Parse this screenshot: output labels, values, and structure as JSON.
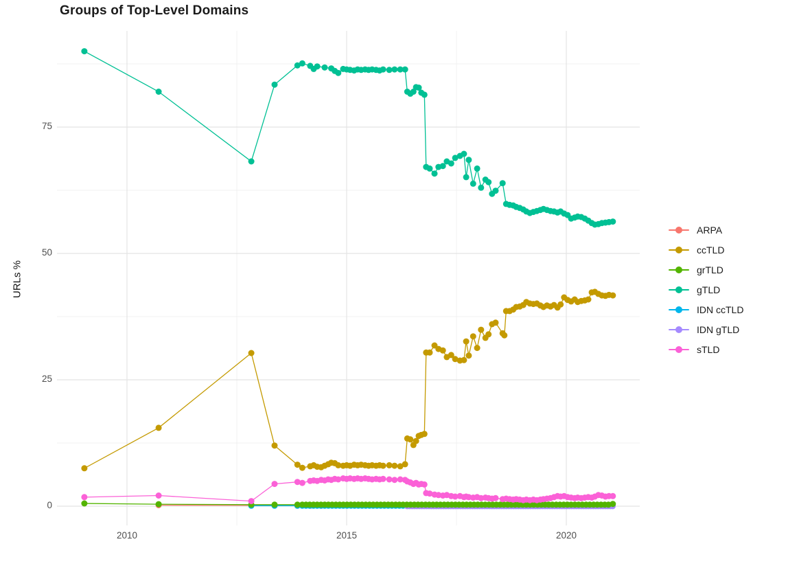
{
  "page": {
    "title": "Groups of Top-Level Domains",
    "y_axis_label": "URLs %"
  },
  "colors": {
    "background": "#FFFFFF",
    "grid_major": "#E4E4E4",
    "grid_minor": "#F1F1F1",
    "tick_label": "#4D4D4D",
    "text": "#1A1A1A"
  },
  "chart_data": {
    "type": "line",
    "title": "Groups of Top-Level Domains",
    "xlabel": "",
    "ylabel": "URLs %",
    "x_ticks": [
      2010,
      2015,
      2020
    ],
    "x_minor_gridlines": [
      2012.5,
      2017.5
    ],
    "y_ticks": [
      0,
      25,
      50,
      75
    ],
    "y_minor_gridlines": [
      12.5,
      37.5,
      62.5,
      87.5
    ],
    "xlim": [
      2008.45,
      2021.65
    ],
    "ylim": [
      -3.8,
      94
    ],
    "grid": true,
    "legend_position": "right",
    "marker_radius": 4.5,
    "line_width": 1.3,
    "draw_order": [
      "ARPA",
      "IDN ccTLD",
      "IDN gTLD",
      "grTLD",
      "sTLD",
      "ccTLD",
      "gTLD"
    ],
    "series": [
      {
        "name": "ARPA",
        "color": "#F8766D",
        "points": [
          [
            2010.72,
            0.2
          ],
          [
            2012.83,
            0.15
          ],
          [
            2013.36,
            0.12
          ],
          [
            2013.88,
            0.1
          ],
          [
            2014.17,
            0.1
          ],
          [
            2014.42,
            0.1
          ]
        ]
      },
      {
        "name": "ccTLD",
        "color": "#C49A00",
        "points": [
          [
            2009.03,
            7.5
          ],
          [
            2010.72,
            15.5
          ],
          [
            2012.83,
            30.3
          ],
          [
            2013.36,
            12
          ],
          [
            2013.88,
            8.2
          ],
          [
            2013.99,
            7.6
          ],
          [
            2014.17,
            7.9
          ],
          [
            2014.25,
            8.1
          ],
          [
            2014.33,
            7.8
          ],
          [
            2014.42,
            7.7
          ],
          [
            2014.5,
            8
          ],
          [
            2014.58,
            8.3
          ],
          [
            2014.65,
            8.6
          ],
          [
            2014.73,
            8.5
          ],
          [
            2014.81,
            8.1
          ],
          [
            2014.92,
            8
          ],
          [
            2015,
            8.1
          ],
          [
            2015.08,
            8
          ],
          [
            2015.17,
            8.2
          ],
          [
            2015.25,
            8.1
          ],
          [
            2015.33,
            8.2
          ],
          [
            2015.42,
            8.1
          ],
          [
            2015.5,
            8
          ],
          [
            2015.58,
            8.1
          ],
          [
            2015.67,
            8
          ],
          [
            2015.75,
            8.1
          ],
          [
            2015.83,
            8
          ],
          [
            2015.97,
            8.1
          ],
          [
            2016.09,
            8
          ],
          [
            2016.22,
            7.9
          ],
          [
            2016.33,
            8.3
          ],
          [
            2016.38,
            13.4
          ],
          [
            2016.45,
            13.2
          ],
          [
            2016.52,
            12.1
          ],
          [
            2016.58,
            12.9
          ],
          [
            2016.64,
            13.9
          ],
          [
            2016.7,
            14.1
          ],
          [
            2016.77,
            14.3
          ],
          [
            2016.81,
            30.4
          ],
          [
            2016.89,
            30.4
          ],
          [
            2017,
            31.8
          ],
          [
            2017.09,
            31.1
          ],
          [
            2017.19,
            30.8
          ],
          [
            2017.28,
            29.5
          ],
          [
            2017.38,
            29.9
          ],
          [
            2017.47,
            29.1
          ],
          [
            2017.58,
            28.8
          ],
          [
            2017.67,
            28.9
          ],
          [
            2017.72,
            32.6
          ],
          [
            2017.78,
            29.8
          ],
          [
            2017.88,
            33.6
          ],
          [
            2017.97,
            31.3
          ],
          [
            2018.06,
            34.9
          ],
          [
            2018.16,
            33.3
          ],
          [
            2018.23,
            34
          ],
          [
            2018.31,
            36
          ],
          [
            2018.39,
            36.3
          ],
          [
            2018.55,
            34.2
          ],
          [
            2018.59,
            33.8
          ],
          [
            2018.63,
            38.6
          ],
          [
            2018.71,
            38.6
          ],
          [
            2018.79,
            38.9
          ],
          [
            2018.86,
            39.4
          ],
          [
            2018.94,
            39.5
          ],
          [
            2019.02,
            39.8
          ],
          [
            2019.09,
            40.4
          ],
          [
            2019.17,
            40.1
          ],
          [
            2019.25,
            40
          ],
          [
            2019.33,
            40.1
          ],
          [
            2019.41,
            39.7
          ],
          [
            2019.48,
            39.4
          ],
          [
            2019.56,
            39.7
          ],
          [
            2019.64,
            39.5
          ],
          [
            2019.72,
            39.8
          ],
          [
            2019.8,
            39.3
          ],
          [
            2019.87,
            39.9
          ],
          [
            2019.95,
            41.3
          ],
          [
            2020.03,
            40.8
          ],
          [
            2020.11,
            40.5
          ],
          [
            2020.19,
            40.9
          ],
          [
            2020.26,
            40.4
          ],
          [
            2020.34,
            40.6
          ],
          [
            2020.42,
            40.7
          ],
          [
            2020.5,
            40.9
          ],
          [
            2020.58,
            42.3
          ],
          [
            2020.65,
            42.4
          ],
          [
            2020.73,
            42
          ],
          [
            2020.81,
            41.7
          ],
          [
            2020.89,
            41.6
          ],
          [
            2020.97,
            41.8
          ],
          [
            2021.06,
            41.7
          ]
        ]
      },
      {
        "name": "grTLD",
        "color": "#53B400",
        "points": [
          [
            2009.03,
            0.55
          ],
          [
            2010.72,
            0.4
          ],
          [
            2012.83,
            0.3
          ],
          [
            2013.36,
            0.3
          ],
          [
            2013.88,
            0.3
          ],
          [
            2021.06,
            0.45
          ]
        ],
        "flat": {
          "from": 2013.99,
          "to": 2021.0,
          "step": 0.085,
          "value": 0.3
        }
      },
      {
        "name": "gTLD",
        "color": "#00C094",
        "points": [
          [
            2009.03,
            90
          ],
          [
            2010.72,
            82
          ],
          [
            2012.83,
            68.2
          ],
          [
            2013.36,
            83.4
          ],
          [
            2013.88,
            87.2
          ],
          [
            2013.99,
            87.6
          ],
          [
            2014.17,
            87.1
          ],
          [
            2014.25,
            86.5
          ],
          [
            2014.33,
            87
          ],
          [
            2014.5,
            86.8
          ],
          [
            2014.65,
            86.6
          ],
          [
            2014.73,
            86.1
          ],
          [
            2014.81,
            85.7
          ],
          [
            2014.92,
            86.5
          ],
          [
            2015,
            86.4
          ],
          [
            2015.08,
            86.3
          ],
          [
            2015.17,
            86.2
          ],
          [
            2015.25,
            86.4
          ],
          [
            2015.33,
            86.3
          ],
          [
            2015.42,
            86.4
          ],
          [
            2015.5,
            86.3
          ],
          [
            2015.58,
            86.4
          ],
          [
            2015.67,
            86.3
          ],
          [
            2015.75,
            86.2
          ],
          [
            2015.83,
            86.4
          ],
          [
            2015.97,
            86.3
          ],
          [
            2016.09,
            86.4
          ],
          [
            2016.22,
            86.4
          ],
          [
            2016.33,
            86.4
          ],
          [
            2016.38,
            82
          ],
          [
            2016.45,
            81.6
          ],
          [
            2016.52,
            82
          ],
          [
            2016.58,
            82.9
          ],
          [
            2016.64,
            82.8
          ],
          [
            2016.7,
            81.8
          ],
          [
            2016.77,
            81.4
          ],
          [
            2016.81,
            67.1
          ],
          [
            2016.89,
            66.8
          ],
          [
            2017,
            65.8
          ],
          [
            2017.09,
            67.1
          ],
          [
            2017.19,
            67.3
          ],
          [
            2017.28,
            68.2
          ],
          [
            2017.38,
            67.8
          ],
          [
            2017.47,
            68.9
          ],
          [
            2017.58,
            69.3
          ],
          [
            2017.67,
            69.7
          ],
          [
            2017.72,
            65.1
          ],
          [
            2017.78,
            68.5
          ],
          [
            2017.88,
            63.8
          ],
          [
            2017.97,
            66.8
          ],
          [
            2018.06,
            63
          ],
          [
            2018.16,
            64.6
          ],
          [
            2018.23,
            64.1
          ],
          [
            2018.31,
            61.8
          ],
          [
            2018.39,
            62.4
          ],
          [
            2018.55,
            63.9
          ],
          [
            2018.63,
            59.8
          ],
          [
            2018.71,
            59.6
          ],
          [
            2018.79,
            59.5
          ],
          [
            2018.86,
            59.2
          ],
          [
            2018.94,
            59
          ],
          [
            2019.02,
            58.7
          ],
          [
            2019.09,
            58.3
          ],
          [
            2019.17,
            58
          ],
          [
            2019.25,
            58.2
          ],
          [
            2019.33,
            58.4
          ],
          [
            2019.41,
            58.6
          ],
          [
            2019.48,
            58.8
          ],
          [
            2019.56,
            58.6
          ],
          [
            2019.64,
            58.4
          ],
          [
            2019.72,
            58.3
          ],
          [
            2019.8,
            58.1
          ],
          [
            2019.87,
            58.3
          ],
          [
            2019.95,
            57.9
          ],
          [
            2020.03,
            57.6
          ],
          [
            2020.11,
            56.9
          ],
          [
            2020.19,
            57.1
          ],
          [
            2020.26,
            57.3
          ],
          [
            2020.34,
            57.2
          ],
          [
            2020.42,
            56.9
          ],
          [
            2020.5,
            56.5
          ],
          [
            2020.58,
            56
          ],
          [
            2020.65,
            55.7
          ],
          [
            2020.73,
            55.8
          ],
          [
            2020.81,
            56
          ],
          [
            2020.89,
            56.1
          ],
          [
            2020.97,
            56.2
          ],
          [
            2021.06,
            56.3
          ]
        ]
      },
      {
        "name": "IDN ccTLD",
        "color": "#00B6EB",
        "points": [
          [
            2012.83,
            0.1
          ],
          [
            2013.36,
            0.1
          ],
          [
            2013.88,
            0.1
          ]
        ],
        "flat": {
          "from": 2013.99,
          "to": 2021.06,
          "step": 0.085,
          "value": 0.1
        }
      },
      {
        "name": "IDN gTLD",
        "color": "#A58AFF",
        "points": [],
        "flat": {
          "from": 2016.38,
          "to": 2021.06,
          "step": 0.055,
          "value": 0.02
        }
      },
      {
        "name": "sTLD",
        "color": "#FB61D7",
        "points": [
          [
            2009.03,
            1.8
          ],
          [
            2010.72,
            2.1
          ],
          [
            2012.83,
            1
          ],
          [
            2013.36,
            4.4
          ],
          [
            2013.88,
            4.8
          ],
          [
            2013.99,
            4.6
          ],
          [
            2014.17,
            5
          ],
          [
            2014.25,
            5.1
          ],
          [
            2014.33,
            5
          ],
          [
            2014.42,
            5.2
          ],
          [
            2014.5,
            5.1
          ],
          [
            2014.58,
            5.3
          ],
          [
            2014.65,
            5.2
          ],
          [
            2014.73,
            5.4
          ],
          [
            2014.81,
            5.3
          ],
          [
            2014.92,
            5.5
          ],
          [
            2015,
            5.4
          ],
          [
            2015.08,
            5.5
          ],
          [
            2015.17,
            5.4
          ],
          [
            2015.25,
            5.5
          ],
          [
            2015.33,
            5.4
          ],
          [
            2015.42,
            5.5
          ],
          [
            2015.5,
            5.4
          ],
          [
            2015.58,
            5.3
          ],
          [
            2015.67,
            5.4
          ],
          [
            2015.75,
            5.3
          ],
          [
            2015.83,
            5.4
          ],
          [
            2015.97,
            5.3
          ],
          [
            2016.09,
            5.2
          ],
          [
            2016.22,
            5.3
          ],
          [
            2016.33,
            5.2
          ],
          [
            2016.38,
            4.9
          ],
          [
            2016.45,
            4.7
          ],
          [
            2016.52,
            4.4
          ],
          [
            2016.58,
            4.6
          ],
          [
            2016.64,
            4.3
          ],
          [
            2016.7,
            4.4
          ],
          [
            2016.77,
            4.3
          ],
          [
            2016.81,
            2.6
          ],
          [
            2016.89,
            2.5
          ],
          [
            2017,
            2.3
          ],
          [
            2017.09,
            2.2
          ],
          [
            2017.19,
            2.1
          ],
          [
            2017.28,
            2.2
          ],
          [
            2017.38,
            2
          ],
          [
            2017.47,
            1.9
          ],
          [
            2017.58,
            2
          ],
          [
            2017.67,
            1.8
          ],
          [
            2017.72,
            1.9
          ],
          [
            2017.78,
            1.8
          ],
          [
            2017.88,
            1.7
          ],
          [
            2017.97,
            1.8
          ],
          [
            2018.06,
            1.6
          ],
          [
            2018.16,
            1.7
          ],
          [
            2018.23,
            1.6
          ],
          [
            2018.31,
            1.5
          ],
          [
            2018.39,
            1.6
          ],
          [
            2018.55,
            1.4
          ],
          [
            2018.63,
            1.5
          ],
          [
            2018.71,
            1.4
          ],
          [
            2018.79,
            1.3
          ],
          [
            2018.86,
            1.4
          ],
          [
            2018.94,
            1.3
          ],
          [
            2019.02,
            1.2
          ],
          [
            2019.09,
            1.3
          ],
          [
            2019.17,
            1.2
          ],
          [
            2019.25,
            1.3
          ],
          [
            2019.33,
            1.2
          ],
          [
            2019.41,
            1.3
          ],
          [
            2019.48,
            1.4
          ],
          [
            2019.56,
            1.5
          ],
          [
            2019.64,
            1.6
          ],
          [
            2019.72,
            1.8
          ],
          [
            2019.8,
            2
          ],
          [
            2019.87,
            1.9
          ],
          [
            2019.95,
            2
          ],
          [
            2020.03,
            1.8
          ],
          [
            2020.11,
            1.7
          ],
          [
            2020.19,
            1.6
          ],
          [
            2020.26,
            1.7
          ],
          [
            2020.34,
            1.6
          ],
          [
            2020.42,
            1.7
          ],
          [
            2020.5,
            1.8
          ],
          [
            2020.58,
            1.7
          ],
          [
            2020.65,
            1.9
          ],
          [
            2020.73,
            2.2
          ],
          [
            2020.81,
            2.1
          ],
          [
            2020.89,
            1.9
          ],
          [
            2020.97,
            2
          ],
          [
            2021.06,
            2
          ]
        ]
      }
    ]
  }
}
